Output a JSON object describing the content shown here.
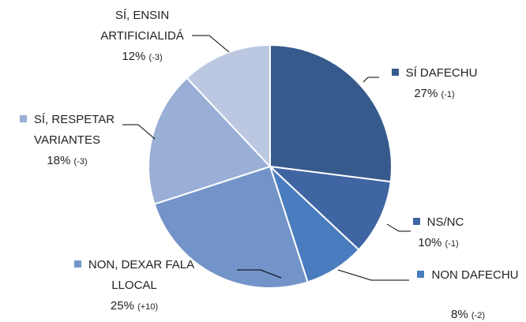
{
  "chart_data": {
    "type": "pie",
    "series": [
      {
        "name": "SÍ DAFECHU",
        "color": "#375a8c",
        "value": 27,
        "value_label": "27%",
        "change": "(-1)"
      },
      {
        "name": "NS/NC",
        "color": "#3f66a3",
        "value": 10,
        "value_label": "10%",
        "change": "(-1)"
      },
      {
        "name": "NON DAFECHU",
        "color": "#4a7dbf",
        "value": 8,
        "value_label": "8%",
        "change": "(-2)"
      },
      {
        "name": "NON, DEXAR FALA LLOCAL",
        "color": "#7394c8",
        "value": 25,
        "value_label": "25%",
        "change": "(+10)"
      },
      {
        "name": "SÍ, RESPETAR VARIANTES",
        "color": "#9aafd6",
        "value": 18,
        "value_label": "18%",
        "change": "(-3)"
      },
      {
        "name": "SÍ, ENSIN ARTIFICIALIDÁ",
        "color": "#bcc8e2",
        "value": 12,
        "value_label": "12%",
        "change": "(-3)"
      }
    ]
  }
}
